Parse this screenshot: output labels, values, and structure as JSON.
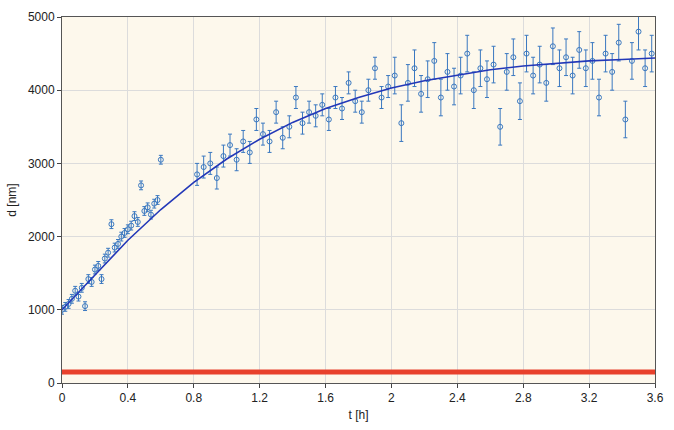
{
  "chart_data": {
    "type": "scatter",
    "x_label": "t [h]",
    "y_label": "d [nm]",
    "xlim": [
      0,
      3.6
    ],
    "ylim": [
      0,
      5000
    ],
    "xticks": [
      0,
      0.4,
      0.8,
      1.2,
      1.6,
      2,
      2.4,
      2.8,
      3.2,
      3.6
    ],
    "yticks": [
      0,
      1000,
      2000,
      3000,
      4000,
      5000
    ],
    "grid": true,
    "series": [
      {
        "type": "scatter",
        "color": "#3a78c0",
        "marker": "circle-open",
        "x": [
          0,
          0.02,
          0.04,
          0.06,
          0.08,
          0.1,
          0.12,
          0.14,
          0.16,
          0.18,
          0.2,
          0.22,
          0.24,
          0.26,
          0.28,
          0.3,
          0.32,
          0.34,
          0.36,
          0.38,
          0.4,
          0.42,
          0.44,
          0.46,
          0.48,
          0.5,
          0.52,
          0.54,
          0.56,
          0.58,
          0.6,
          0.82,
          0.86,
          0.9,
          0.94,
          0.98,
          1.02,
          1.06,
          1.1,
          1.14,
          1.18,
          1.22,
          1.26,
          1.3,
          1.34,
          1.38,
          1.42,
          1.46,
          1.5,
          1.54,
          1.58,
          1.62,
          1.66,
          1.7,
          1.74,
          1.78,
          1.82,
          1.86,
          1.9,
          1.94,
          1.98,
          2.02,
          2.06,
          2.1,
          2.14,
          2.18,
          2.22,
          2.26,
          2.3,
          2.34,
          2.38,
          2.42,
          2.46,
          2.5,
          2.54,
          2.58,
          2.62,
          2.66,
          2.7,
          2.74,
          2.78,
          2.82,
          2.86,
          2.9,
          2.94,
          2.98,
          3.02,
          3.06,
          3.1,
          3.14,
          3.18,
          3.22,
          3.26,
          3.3,
          3.34,
          3.38,
          3.42,
          3.46,
          3.5,
          3.54,
          3.58
        ],
        "values": [
          1000,
          1040,
          1080,
          1150,
          1260,
          1180,
          1300,
          1050,
          1420,
          1380,
          1550,
          1600,
          1420,
          1700,
          1780,
          2170,
          1850,
          1900,
          2000,
          2050,
          2100,
          2150,
          2280,
          2200,
          2700,
          2350,
          2400,
          2300,
          2450,
          2500,
          3050,
          2850,
          2950,
          3000,
          2800,
          3100,
          3250,
          3050,
          3300,
          3150,
          3600,
          3400,
          3300,
          3700,
          3350,
          3500,
          3900,
          3550,
          3700,
          3650,
          3800,
          3600,
          3900,
          3750,
          4100,
          3850,
          3700,
          4000,
          4300,
          3900,
          4050,
          4200,
          3550,
          4100,
          4300,
          3950,
          4150,
          4400,
          3900,
          4250,
          4050,
          4200,
          4500,
          4000,
          4300,
          4150,
          4350,
          3500,
          4250,
          4450,
          3850,
          4500,
          4200,
          4350,
          4100,
          4600,
          4300,
          4450,
          4200,
          4550,
          4300,
          4400,
          3900,
          4500,
          4250,
          4650,
          3600,
          4400,
          4800,
          4300,
          4500
        ],
        "error": [
          60,
          60,
          60,
          60,
          60,
          60,
          60,
          60,
          60,
          60,
          60,
          60,
          60,
          60,
          60,
          60,
          60,
          60,
          60,
          60,
          60,
          60,
          60,
          60,
          60,
          60,
          60,
          60,
          60,
          60,
          60,
          150,
          150,
          150,
          150,
          150,
          150,
          150,
          150,
          150,
          150,
          150,
          150,
          150,
          150,
          150,
          150,
          150,
          150,
          150,
          150,
          150,
          150,
          150,
          150,
          150,
          150,
          150,
          150,
          150,
          150,
          250,
          250,
          250,
          250,
          250,
          250,
          250,
          250,
          250,
          250,
          250,
          250,
          250,
          250,
          250,
          250,
          250,
          250,
          250,
          250,
          250,
          250,
          250,
          250,
          250,
          250,
          250,
          250,
          250,
          250,
          250,
          250,
          250,
          250,
          250,
          250,
          250,
          250,
          250,
          250
        ]
      },
      {
        "type": "line",
        "color": "#2338b8",
        "line_style": "solid",
        "x": [
          0,
          0.2,
          0.4,
          0.6,
          0.8,
          1.0,
          1.2,
          1.4,
          1.6,
          1.8,
          2.0,
          2.2,
          2.4,
          2.6,
          2.8,
          3.0,
          3.2,
          3.4,
          3.6
        ],
        "values": [
          1000,
          1480,
          1950,
          2370,
          2740,
          3060,
          3330,
          3560,
          3750,
          3900,
          4030,
          4130,
          4210,
          4280,
          4330,
          4370,
          4400,
          4420,
          4440
        ]
      },
      {
        "type": "line",
        "color": "#e8412c",
        "line_style": "solid",
        "x": [
          0,
          3.6
        ],
        "values": [
          150,
          150
        ]
      }
    ]
  }
}
